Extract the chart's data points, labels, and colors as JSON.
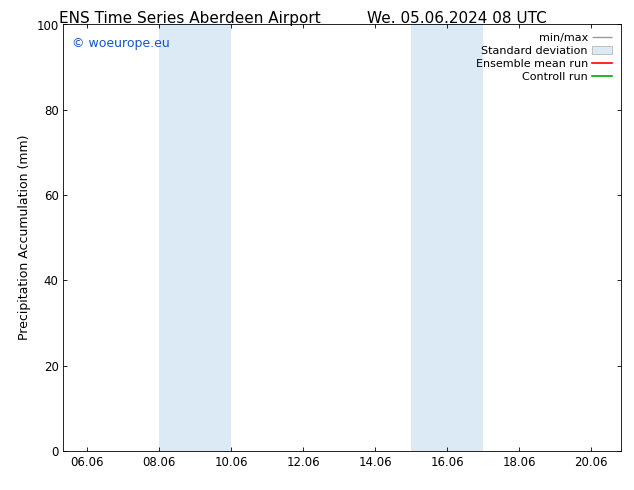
{
  "title_left": "ENS Time Series Aberdeen Airport",
  "title_right": "We. 05.06.2024 08 UTC",
  "ylabel": "Precipitation Accumulation (mm)",
  "ylim": [
    0,
    100
  ],
  "yticks": [
    0,
    20,
    40,
    60,
    80,
    100
  ],
  "xtick_labels": [
    "06.06",
    "08.06",
    "10.06",
    "12.06",
    "14.06",
    "16.06",
    "18.06",
    "20.06"
  ],
  "shaded_color": "#dbeaf5",
  "watermark_text": "© woeurope.eu",
  "watermark_color": "#1155cc",
  "legend_items": [
    {
      "label": "min/max"
    },
    {
      "label": "Standard deviation"
    },
    {
      "label": "Ensemble mean run"
    },
    {
      "label": "Controll run"
    }
  ],
  "background_color": "#ffffff",
  "title_fontsize": 11,
  "axis_label_fontsize": 9,
  "tick_fontsize": 8.5,
  "legend_fontsize": 8
}
